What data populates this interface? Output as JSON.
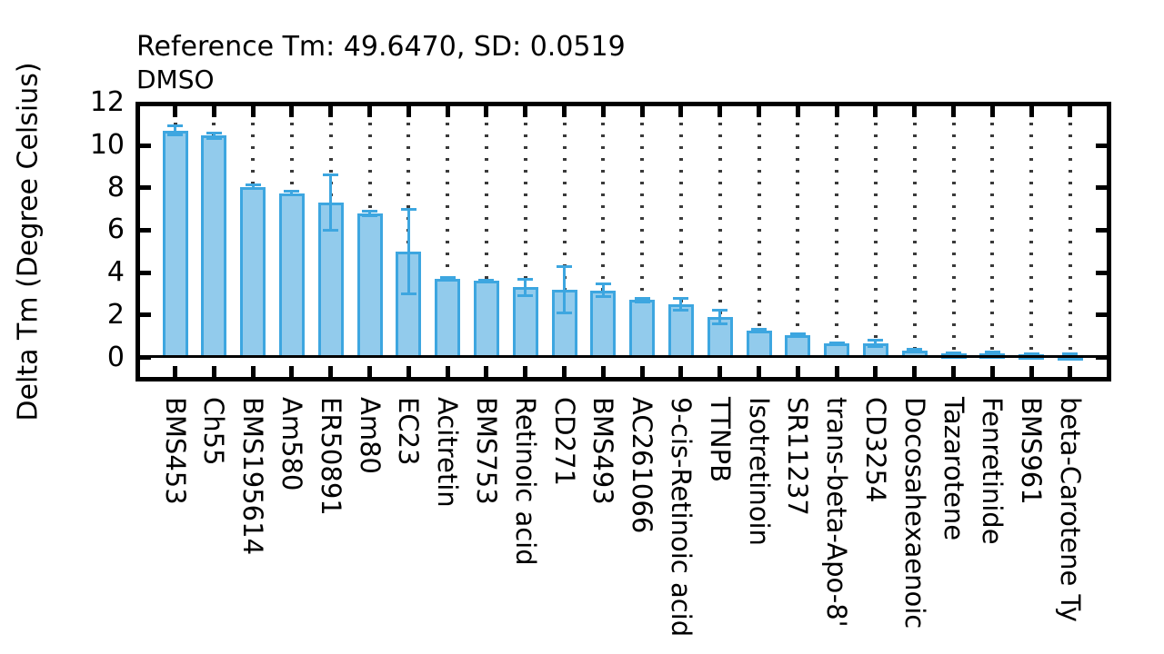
{
  "chart_data": {
    "type": "bar",
    "title": "Reference Tm: 49.6470, SD: 0.0519",
    "subtitle": "DMSO",
    "ylabel": "Delta Tm (Degree Celsius)",
    "xlabel": "",
    "ylim": [
      -1,
      12
    ],
    "yticks": [
      0,
      2,
      4,
      6,
      8,
      10,
      12
    ],
    "grid": "dotted vertical line at each category",
    "legend_position": "none",
    "categories": [
      "BMS453",
      "Ch55",
      "BMS195614",
      "Am580",
      "ER50891",
      "Am80",
      "EC23",
      "Acitretin",
      "BMS753",
      "Retinoic acid",
      "CD271",
      "BMS493",
      "AC261066",
      "9-cis-Retinoic acid",
      "TTNPB",
      "Isotretinoin",
      "SR11237",
      "trans-beta-Apo-8'",
      "CD3254",
      "Docosahexaenoic",
      "Tazarotene",
      "Fenretinide",
      "BMS961",
      "beta-Carotene Ty"
    ],
    "values": [
      10.7,
      10.45,
      8.05,
      7.75,
      7.3,
      6.8,
      5.0,
      3.7,
      3.6,
      3.3,
      3.2,
      3.15,
      2.7,
      2.5,
      1.9,
      1.25,
      1.05,
      0.65,
      0.65,
      0.33,
      0.18,
      0.2,
      0.15,
      0.12
    ],
    "errors": [
      0.2,
      0.12,
      0.1,
      0.08,
      1.3,
      0.1,
      2.0,
      0.06,
      0.06,
      0.4,
      1.1,
      0.3,
      0.07,
      0.28,
      0.33,
      0.06,
      0.07,
      0.05,
      0.15,
      0.05,
      0.04,
      0.05,
      0.04,
      0.03
    ],
    "colors": {
      "bar_fill": "#92CBEC",
      "bar_edge": "#3DA6E0",
      "error_bar": "#3DA6E0",
      "grid_dots": "#3a3a3a",
      "axis": "#000000"
    }
  }
}
